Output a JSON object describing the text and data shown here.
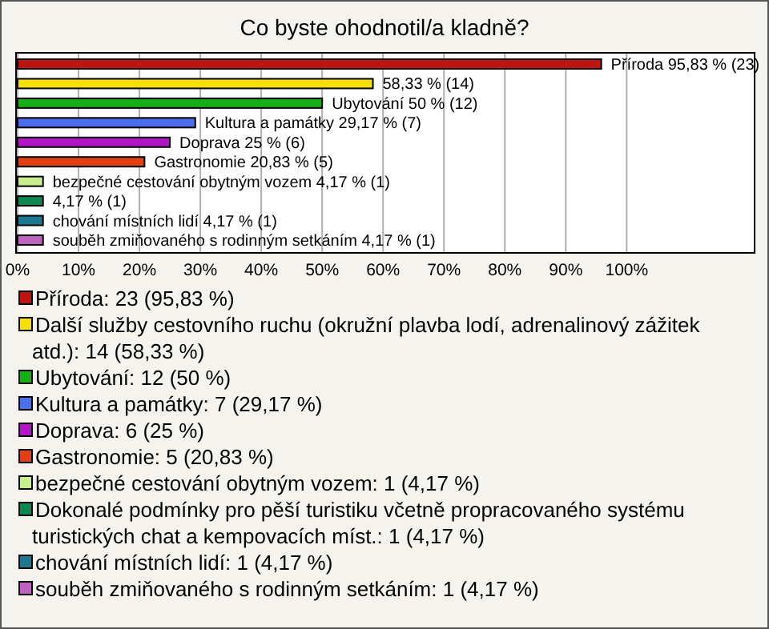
{
  "chart_data": {
    "type": "bar",
    "orientation": "horizontal",
    "stacked": true,
    "title": "Co byste ohodnotil/a kladně?",
    "categories": [
      null,
      null,
      null,
      null,
      null,
      null,
      null,
      null,
      null,
      null
    ],
    "series": [
      {
        "name": "Příroda: 23 (95,83 %)",
        "color": "#c0140c",
        "values": [
          95.83,
          null,
          null,
          null,
          null,
          null,
          null,
          null,
          null,
          null
        ],
        "value_labels": [
          "Příroda 95,83 % (23)",
          null,
          null,
          null,
          null,
          null,
          null,
          null,
          null,
          null
        ]
      },
      {
        "name": "Další služby cestovního ruchu (okružní plavba lodí, adrenalinový zážitek atd.): 14 (58,33 %)",
        "color": "#f5e000",
        "values": [
          null,
          58.33,
          null,
          null,
          null,
          null,
          null,
          null,
          null,
          null
        ],
        "value_labels": [
          null,
          "58,33 % (14)",
          null,
          null,
          null,
          null,
          null,
          null,
          null,
          null
        ]
      },
      {
        "name": "Ubytování: 12 (50 %)",
        "color": "#12b012",
        "values": [
          null,
          null,
          50,
          null,
          null,
          null,
          null,
          null,
          null,
          null
        ],
        "value_labels": [
          null,
          null,
          "Ubytování 50 % (12)",
          null,
          null,
          null,
          null,
          null,
          null,
          null
        ]
      },
      {
        "name": "Kultura a památky: 7 (29,17 %)",
        "color": "#4a6ef0",
        "values": [
          null,
          null,
          null,
          29.17,
          null,
          null,
          null,
          null,
          null,
          null
        ],
        "value_labels": [
          null,
          null,
          null,
          "Kultura a památky 29,17 % (7)",
          null,
          null,
          null,
          null,
          null,
          null
        ]
      },
      {
        "name": "Doprava: 6 (25 %)",
        "color": "#b414c8",
        "values": [
          null,
          null,
          null,
          null,
          25,
          null,
          null,
          null,
          null,
          null
        ],
        "value_labels": [
          null,
          null,
          null,
          null,
          "Doprava 25 % (6)",
          null,
          null,
          null,
          null,
          null
        ]
      },
      {
        "name": "Gastronomie: 5 (20,83 %)",
        "color": "#e24010",
        "values": [
          null,
          null,
          null,
          null,
          null,
          20.83,
          null,
          null,
          null,
          null
        ],
        "value_labels": [
          null,
          null,
          null,
          null,
          null,
          "Gastronomie 20,83 % (5)",
          null,
          null,
          null,
          null
        ]
      },
      {
        "name": "bezpečné cestování obytným vozem: 1 (4,17 %)",
        "color": "#c8f08a",
        "values": [
          null,
          null,
          null,
          null,
          null,
          null,
          4.17,
          null,
          null,
          null
        ],
        "value_labels": [
          null,
          null,
          null,
          null,
          null,
          null,
          "bezpečné cestování obytným vozem 4,17 % (1)",
          null,
          null,
          null
        ]
      },
      {
        "name": "Dokonalé podmínky pro pěší turistiku včetně propracovaného systému turistických chat a kempovacích míst.: 1 (4,17 %)",
        "color": "#0a8a50",
        "values": [
          null,
          null,
          null,
          null,
          null,
          null,
          null,
          4.17,
          null,
          null
        ],
        "value_labels": [
          null,
          null,
          null,
          null,
          null,
          null,
          null,
          "4,17 % (1)",
          null,
          null
        ]
      },
      {
        "name": "chování místních lidí: 1 (4,17 %)",
        "color": "#1a7890",
        "values": [
          null,
          null,
          null,
          null,
          null,
          null,
          null,
          null,
          4.17,
          null
        ],
        "value_labels": [
          null,
          null,
          null,
          null,
          null,
          null,
          null,
          null,
          "chování místních lidí 4,17 % (1)",
          null
        ]
      },
      {
        "name": "souběh zmiňovaného s rodinným setkáním: 1 (4,17 %)",
        "color": "#c060c0",
        "values": [
          null,
          null,
          null,
          null,
          null,
          null,
          null,
          null,
          null,
          4.17
        ],
        "value_labels": [
          null,
          null,
          null,
          null,
          null,
          null,
          null,
          null,
          null,
          "souběh zmiňovaného s rodinným setkáním 4,17 % (1)"
        ]
      }
    ],
    "xlim": [
      0,
      121
    ],
    "xticks": [
      {
        "value": 0,
        "label": "0%"
      },
      {
        "value": 10,
        "label": "10%"
      },
      {
        "value": 20,
        "label": "20%"
      },
      {
        "value": 30,
        "label": "30%"
      },
      {
        "value": 40,
        "label": "40%"
      },
      {
        "value": 50,
        "label": "50%"
      },
      {
        "value": 60,
        "label": "60%"
      },
      {
        "value": 70,
        "label": "70%"
      },
      {
        "value": 80,
        "label": "80%"
      },
      {
        "value": 90,
        "label": "90%"
      },
      {
        "value": 100,
        "label": "100%"
      }
    ],
    "grid": "x",
    "tick_labels": "x",
    "legend": "bottom"
  }
}
